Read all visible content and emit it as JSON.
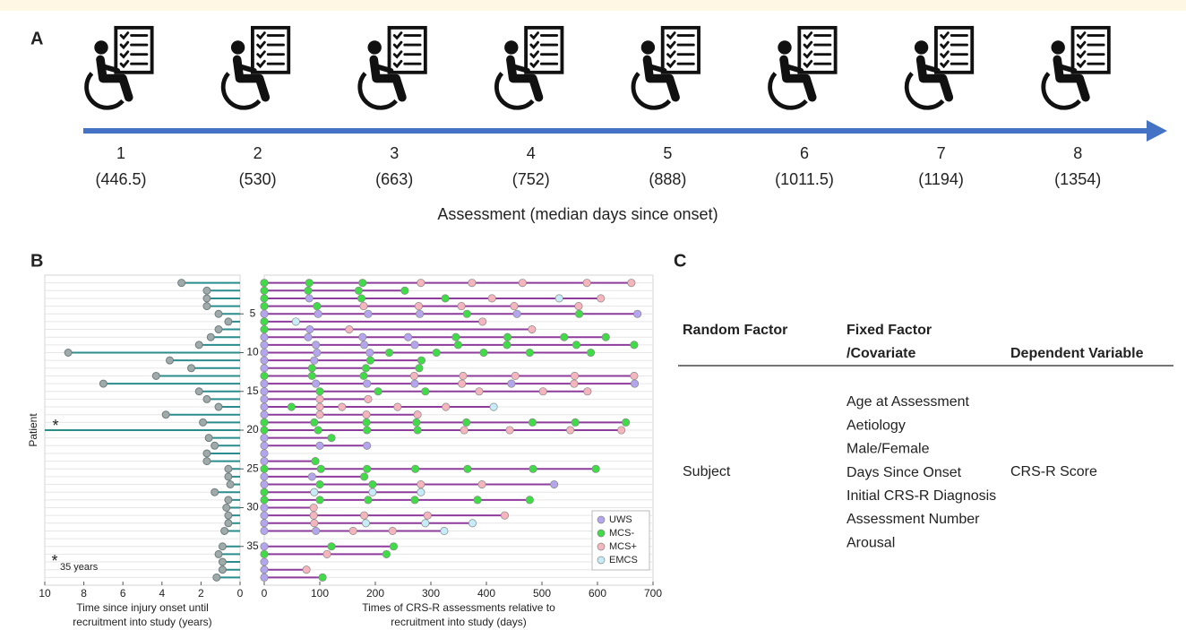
{
  "panels": [
    "A",
    "B",
    "C"
  ],
  "panel_a": {
    "axis_label": "Assessment (median days since onset)",
    "assessments": [
      {
        "number": "1",
        "median": "(446.5)"
      },
      {
        "number": "2",
        "median": "(530)"
      },
      {
        "number": "3",
        "median": "(663)"
      },
      {
        "number": "4",
        "median": "(752)"
      },
      {
        "number": "5",
        "median": "(888)"
      },
      {
        "number": "6",
        "median": "(1011.5)"
      },
      {
        "number": "7",
        "median": "(1194)"
      },
      {
        "number": "8",
        "median": "(1354)"
      }
    ]
  },
  "chart_data": [
    {
      "type": "lollipop",
      "ylabel": "Patient",
      "xlabel": [
        "Time since injury onset until",
        "recruitment into study (years)"
      ],
      "y": [
        1,
        2,
        3,
        4,
        5,
        6,
        7,
        8,
        9,
        10,
        11,
        12,
        13,
        14,
        15,
        16,
        17,
        18,
        19,
        20,
        21,
        22,
        23,
        24,
        25,
        26,
        27,
        28,
        29,
        30,
        31,
        32,
        33,
        34,
        35,
        36,
        37,
        38,
        39
      ],
      "values": [
        3,
        1.7,
        1.7,
        1.7,
        1.1,
        0.6,
        1.1,
        1.5,
        2.1,
        8.8,
        3.6,
        2.5,
        4.3,
        7,
        2.1,
        1.7,
        1.1,
        3.8,
        1.9,
        35,
        1.6,
        1.3,
        1.7,
        1.7,
        0.6,
        0.6,
        0.5,
        1.3,
        0.6,
        0.7,
        0.6,
        0.6,
        0.8,
        null,
        0.9,
        1.1,
        0.9,
        0.9,
        1.2
      ],
      "annotations": [
        "*",
        "35 years"
      ],
      "line_color": "#2a8c8c",
      "marker_color": "#9fabab",
      "xlim": [
        10,
        0
      ],
      "xticks": [
        10,
        8,
        6,
        4,
        2,
        0
      ],
      "ylim": [
        0,
        40
      ],
      "yticks": [
        5,
        10,
        15,
        20,
        25,
        30,
        35
      ],
      "grid": true
    },
    {
      "type": "scatter",
      "xlabel": [
        "Times of CRS-R assessments relative to",
        "recruitment into study (days)"
      ],
      "line_color": "#8e3c9c",
      "legend": "lower right",
      "xlim": [
        0,
        700
      ],
      "xticks": [
        0,
        100,
        200,
        300,
        400,
        500,
        600,
        700
      ],
      "ylim": [
        0,
        40
      ],
      "series": [
        {
          "name": "UWS",
          "color": "#b4a6ee",
          "x": [
            81,
            0,
            97,
            187,
            280,
            455,
            672,
            82,
            0,
            79,
            177,
            259,
            0,
            93,
            180,
            271,
            0,
            95,
            190,
            0,
            90,
            0,
            0,
            93,
            185,
            271,
            445,
            667,
            0,
            0,
            0,
            0,
            0,
            0,
            100,
            185,
            0,
            0,
            0,
            86,
            0,
            522,
            0,
            0,
            0,
            0,
            93,
            0,
            0,
            0,
            0
          ],
          "y": [
            3,
            5,
            5,
            5,
            5,
            5,
            5,
            7,
            8,
            8,
            8,
            8,
            9,
            9,
            9,
            9,
            10,
            10,
            10,
            11,
            11,
            12,
            14,
            14,
            14,
            14,
            14,
            14,
            15,
            16,
            17,
            18,
            21,
            22,
            22,
            22,
            23,
            24,
            26,
            26,
            27,
            27,
            30,
            31,
            32,
            33,
            33,
            35,
            37,
            38,
            39
          ]
        },
        {
          "name": "MCS-",
          "color": "#3fdc48",
          "x": [
            0,
            81,
            177,
            0,
            79,
            170,
            253,
            0,
            175,
            326,
            0,
            95,
            365,
            567,
            0,
            0,
            345,
            438,
            540,
            615,
            349,
            437,
            562,
            666,
            225,
            310,
            395,
            478,
            588,
            191,
            283,
            86,
            183,
            279,
            0,
            86,
            179,
            100,
            205,
            290,
            49,
            0,
            90,
            184,
            274,
            364,
            483,
            560,
            651,
            0,
            97,
            185,
            276,
            121,
            92,
            0,
            102,
            185,
            272,
            366,
            484,
            597,
            180,
            100,
            195,
            0,
            0,
            100,
            187,
            271,
            384,
            478,
            121,
            233,
            0,
            220,
            105
          ],
          "y": [
            1,
            1,
            1,
            2,
            2,
            2,
            2,
            3,
            3,
            3,
            4,
            4,
            5,
            5,
            6,
            7,
            8,
            8,
            8,
            8,
            9,
            9,
            9,
            9,
            10,
            10,
            10,
            10,
            10,
            11,
            11,
            12,
            12,
            12,
            13,
            13,
            13,
            15,
            15,
            15,
            17,
            19,
            19,
            19,
            19,
            19,
            19,
            19,
            19,
            20,
            20,
            20,
            20,
            21,
            24,
            25,
            25,
            25,
            25,
            25,
            25,
            25,
            26,
            27,
            27,
            28,
            29,
            29,
            29,
            29,
            29,
            29,
            35,
            35,
            36,
            36,
            39
          ]
        },
        {
          "name": "MCS+",
          "color": "#f5b5bd",
          "x": [
            282,
            374,
            465,
            581,
            661,
            410,
            606,
            179,
            278,
            355,
            450,
            566,
            393,
            153,
            482,
            270,
            358,
            452,
            559,
            666,
            356,
            558,
            387,
            502,
            582,
            100,
            187,
            100,
            140,
            240,
            327,
            100,
            184,
            276,
            360,
            442,
            551,
            643,
            282,
            392,
            89,
            89,
            180,
            294,
            433,
            90,
            160,
            231,
            113,
            76
          ],
          "y": [
            1,
            1,
            1,
            1,
            1,
            3,
            3,
            4,
            4,
            4,
            4,
            4,
            6,
            7,
            7,
            13,
            13,
            13,
            13,
            13,
            14,
            14,
            15,
            15,
            15,
            16,
            16,
            17,
            17,
            17,
            17,
            18,
            18,
            18,
            20,
            20,
            20,
            20,
            27,
            27,
            30,
            31,
            31,
            31,
            31,
            32,
            33,
            33,
            36,
            38
          ]
        },
        {
          "name": "EMCS",
          "color": "#c6ecf7",
          "x": [
            531,
            57,
            413,
            90,
            195,
            282,
            183,
            290,
            375,
            324
          ],
          "y": [
            3,
            6,
            17,
            28,
            28,
            28,
            32,
            32,
            32,
            33
          ]
        }
      ]
    }
  ],
  "panel_c": {
    "header_random": "Random Factor",
    "header_fixed": [
      "Fixed Factor",
      "/Covariate"
    ],
    "header_dependent": "Dependent Variable",
    "random": "Subject",
    "fixed": [
      "Age at Assessment",
      "Aetiology",
      "Male/Female",
      "Days Since Onset",
      "Initial CRS-R Diagnosis",
      "Assessment Number",
      "Arousal"
    ],
    "dependent": "CRS-R Score"
  }
}
